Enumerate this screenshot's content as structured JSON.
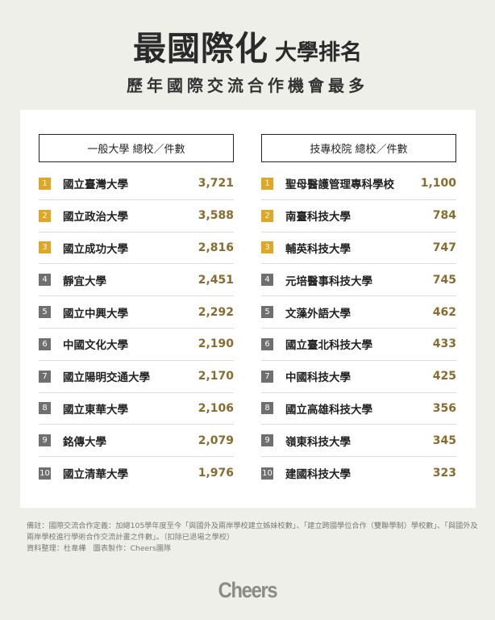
{
  "header": {
    "title_main": "最國際化",
    "title_sub": "大學排名",
    "subtitle": "歷年國際交流合作機會最多"
  },
  "left_table": {
    "header": "一般大學 總校／件數",
    "rows": [
      {
        "rank": "1",
        "name": "國立臺灣大學",
        "count": "3,721",
        "highlight": true
      },
      {
        "rank": "2",
        "name": "國立政治大學",
        "count": "3,588",
        "highlight": true
      },
      {
        "rank": "3",
        "name": "國立成功大學",
        "count": "2,816",
        "highlight": true
      },
      {
        "rank": "4",
        "name": "靜宜大學",
        "count": "2,451",
        "highlight": false
      },
      {
        "rank": "5",
        "name": "國立中興大學",
        "count": "2,292",
        "highlight": false
      },
      {
        "rank": "6",
        "name": "中國文化大學",
        "count": "2,190",
        "highlight": false
      },
      {
        "rank": "7",
        "name": "國立陽明交通大學",
        "count": "2,170",
        "highlight": false
      },
      {
        "rank": "8",
        "name": "國立東華大學",
        "count": "2,106",
        "highlight": false
      },
      {
        "rank": "9",
        "name": "銘傳大學",
        "count": "2,079",
        "highlight": false
      },
      {
        "rank": "10",
        "name": "國立清華大學",
        "count": "1,976",
        "highlight": false
      }
    ]
  },
  "right_table": {
    "header": "技專校院 總校／件數",
    "rows": [
      {
        "rank": "1",
        "name": "聖母醫護管理專科學校",
        "count": "1,100",
        "highlight": true
      },
      {
        "rank": "2",
        "name": "南臺科技大學",
        "count": "784",
        "highlight": true
      },
      {
        "rank": "3",
        "name": "輔英科技大學",
        "count": "747",
        "highlight": true
      },
      {
        "rank": "4",
        "name": "元培醫事科技大學",
        "count": "745",
        "highlight": false
      },
      {
        "rank": "5",
        "name": "文藻外語大學",
        "count": "462",
        "highlight": false
      },
      {
        "rank": "6",
        "name": "國立臺北科技大學",
        "count": "433",
        "highlight": false
      },
      {
        "rank": "7",
        "name": "中國科技大學",
        "count": "425",
        "highlight": false
      },
      {
        "rank": "8",
        "name": "國立高雄科技大學",
        "count": "356",
        "highlight": false
      },
      {
        "rank": "9",
        "name": "嶺東科技大學",
        "count": "345",
        "highlight": false
      },
      {
        "rank": "10",
        "name": "建國科技大學",
        "count": "323",
        "highlight": false
      }
    ]
  },
  "footer": {
    "note_line1": "備註：國際交流合作定義：加總105學年度至今「與國外及兩岸學校建立姊妹校數」、「建立跨國學位合作（雙聯學制）學校數」、「與國外及兩岸學校進行學術合作交流計畫之件數」。（扣除已退場之學校）",
    "note_line2": "資料整理：杜韋樺　圖表製作：Cheers團隊",
    "logo": "Cheers"
  },
  "colors": {
    "background": "#efefe9",
    "rank_highlight": "#e1a624",
    "rank_default": "#6f6f6f",
    "count_text": "#8a6b2e"
  }
}
